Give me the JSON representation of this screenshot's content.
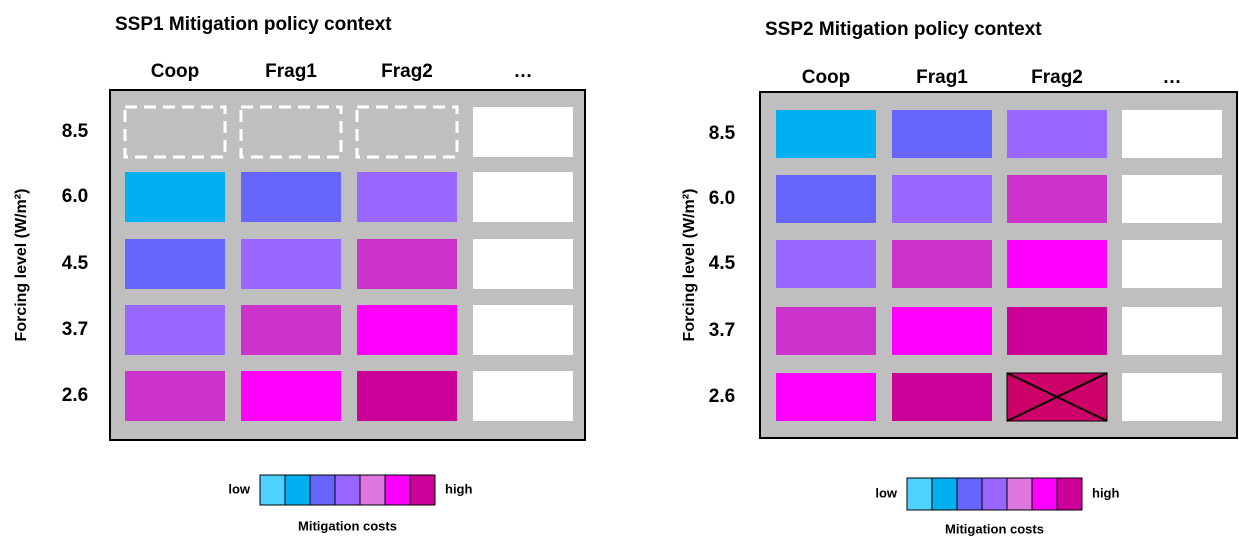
{
  "panels": [
    {
      "title": "SSP1 Mitigation policy context",
      "columns": [
        "Coop",
        "Frag1",
        "Frag2",
        "…"
      ],
      "rows": [
        "8.5",
        "6.0",
        "4.5",
        "3.7",
        "2.6"
      ],
      "y_label": "Forcing level (W/m²)",
      "cells": [
        [
          null,
          null,
          null,
          "#ffffff"
        ],
        [
          "#00b0f0",
          "#6666ff",
          "#9966ff",
          "#ffffff"
        ],
        [
          "#6666ff",
          "#9966ff",
          "#cc33cc",
          "#ffffff"
        ],
        [
          "#9966ff",
          "#cc33cc",
          "#ff00ff",
          "#ffffff"
        ],
        [
          "#cc33cc",
          "#ff00ff",
          "#cc0099",
          "#ffffff"
        ]
      ],
      "excluded": [],
      "legend": {
        "low": "low",
        "high": "high",
        "caption": "Mitigation costs",
        "colors": [
          "#4dd2ff",
          "#00b0f0",
          "#6666ff",
          "#9966ff",
          "#dd77dd",
          "#ff00ff",
          "#cc0099"
        ]
      }
    },
    {
      "title": "SSP2 Mitigation policy context",
      "columns": [
        "Coop",
        "Frag1",
        "Frag2",
        "…"
      ],
      "rows": [
        "8.5",
        "6.0",
        "4.5",
        "3.7",
        "2.6"
      ],
      "y_label": "Forcing level (W/m²)",
      "cells": [
        [
          "#00b0f0",
          "#6666ff",
          "#9966ff",
          "#ffffff"
        ],
        [
          "#6666ff",
          "#9966ff",
          "#cc33cc",
          "#ffffff"
        ],
        [
          "#9966ff",
          "#cc33cc",
          "#ff00ff",
          "#ffffff"
        ],
        [
          "#cc33cc",
          "#ff00ff",
          "#cc0099",
          "#ffffff"
        ],
        [
          "#ff00ff",
          "#cc0099",
          "#cc0066",
          "#ffffff"
        ]
      ],
      "excluded": [
        [
          4,
          2
        ]
      ],
      "legend": {
        "low": "low",
        "high": "high",
        "caption": "Mitigation costs",
        "colors": [
          "#4dd2ff",
          "#00b0f0",
          "#6666ff",
          "#9966ff",
          "#dd77dd",
          "#ff00ff",
          "#cc0099"
        ]
      }
    }
  ]
}
